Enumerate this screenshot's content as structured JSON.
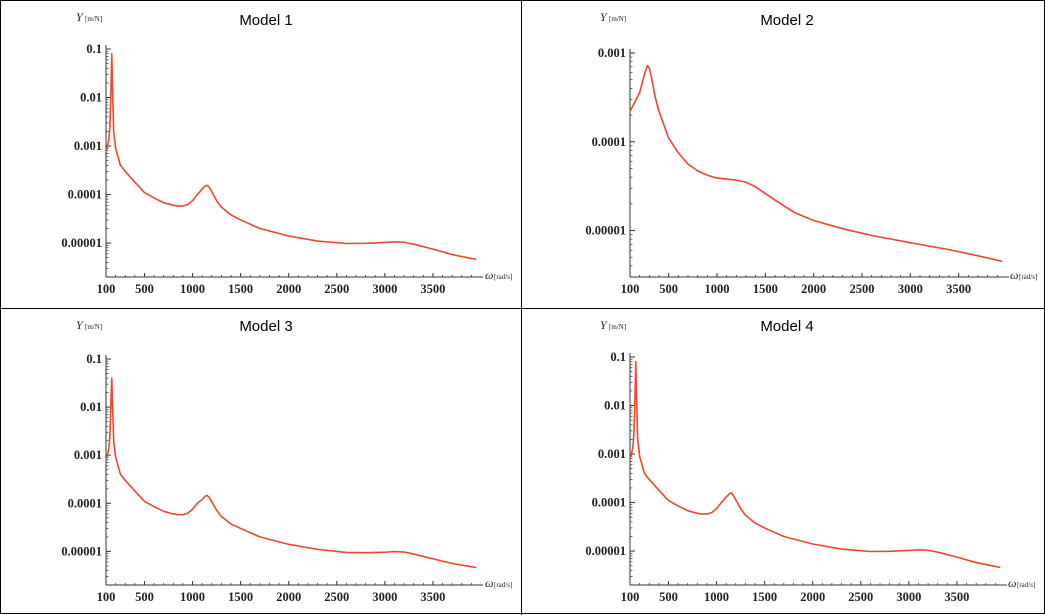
{
  "colors": {
    "curve": "#f0462e",
    "axis": "#333333"
  },
  "chart_data": [
    {
      "type": "line",
      "title": "Model 1",
      "ylabel": "Y",
      "ylabel_unit": "m/N",
      "xlabel": "ω",
      "xlabel_unit": "rad/s",
      "scale_y": "log",
      "xlim": [
        100,
        4000
      ],
      "ylim": [
        2e-06,
        0.1
      ],
      "xticks": [
        "100",
        "500",
        "1000",
        "1500",
        "2000",
        "2500",
        "3000",
        "3500"
      ],
      "yticks": [
        "0.1",
        "0.01",
        "0.001",
        "0.0001",
        "0.00001"
      ],
      "series": [
        {
          "x": [
            100,
            110,
            120,
            130,
            140,
            150,
            160,
            170,
            180,
            200,
            250,
            300,
            400,
            500,
            600,
            700,
            800,
            850,
            900,
            950,
            1000,
            1050,
            1100,
            1130,
            1150,
            1170,
            1200,
            1250,
            1300,
            1400,
            1500,
            1700,
            2000,
            2300,
            2600,
            2800,
            3000,
            3100,
            3200,
            3300,
            3500,
            3700,
            3950
          ],
          "y": [
            0.00085,
            0.0009,
            0.0011,
            0.0014,
            0.0025,
            0.01,
            0.08,
            0.01,
            0.002,
            0.0009,
            0.0004,
            0.0003,
            0.00018,
            0.00011,
            8.5e-05,
            6.8e-05,
            6e-05,
            5.8e-05,
            5.8e-05,
            6.2e-05,
            7.5e-05,
            0.0001,
            0.00013,
            0.00015,
            0.000155,
            0.000145,
            0.000115,
            7.5e-05,
            5.5e-05,
            3.8e-05,
            3e-05,
            2e-05,
            1.4e-05,
            1.1e-05,
            9.8e-06,
            9.9e-06,
            1.03e-05,
            1.06e-05,
            1.04e-05,
            9.5e-06,
            7.5e-06,
            5.8e-06,
            4.6e-06
          ]
        }
      ]
    },
    {
      "type": "line",
      "title": "Model 2",
      "ylabel": "Y",
      "ylabel_unit": "m/N",
      "xlabel": "ω",
      "xlabel_unit": "rad/s",
      "scale_y": "log",
      "xlim": [
        100,
        4000
      ],
      "ylim": [
        3e-06,
        0.001
      ],
      "xticks": [
        "100",
        "500",
        "1000",
        "1500",
        "2000",
        "2500",
        "3000",
        "3500"
      ],
      "yticks": [
        "0.001",
        "0.0001",
        "0.00001"
      ],
      "series": [
        {
          "x": [
            100,
            150,
            200,
            250,
            280,
            300,
            330,
            360,
            400,
            500,
            600,
            700,
            800,
            900,
            1000,
            1100,
            1200,
            1300,
            1400,
            1600,
            1800,
            2000,
            2300,
            2600,
            3000,
            3400,
            3700,
            3950
          ],
          "y": [
            0.00022,
            0.00028,
            0.00036,
            0.00058,
            0.00072,
            0.00068,
            0.00048,
            0.00032,
            0.00022,
            0.00011,
            7.5e-05,
            5.6e-05,
            4.7e-05,
            4.2e-05,
            3.9e-05,
            3.8e-05,
            3.7e-05,
            3.5e-05,
            3.1e-05,
            2.2e-05,
            1.6e-05,
            1.3e-05,
            1.05e-05,
            8.8e-06,
            7.3e-06,
            6.1e-06,
            5.2e-06,
            4.5e-06
          ]
        }
      ]
    },
    {
      "type": "line",
      "title": "Model 3",
      "ylabel": "Y",
      "ylabel_unit": "m/N",
      "xlabel": "ω",
      "xlabel_unit": "rad/s",
      "scale_y": "log",
      "xlim": [
        100,
        4000
      ],
      "ylim": [
        2e-06,
        0.1
      ],
      "xticks": [
        "100",
        "500",
        "1000",
        "1500",
        "2000",
        "2500",
        "3000",
        "3500"
      ],
      "yticks": [
        "0.1",
        "0.01",
        "0.001",
        "0.0001",
        "0.00001"
      ],
      "series": [
        {
          "x": [
            100,
            110,
            120,
            130,
            140,
            150,
            160,
            170,
            180,
            200,
            250,
            300,
            400,
            500,
            600,
            700,
            800,
            850,
            900,
            950,
            1000,
            1050,
            1100,
            1130,
            1150,
            1170,
            1200,
            1250,
            1300,
            1400,
            1500,
            1700,
            2000,
            2300,
            2600,
            2800,
            3000,
            3100,
            3200,
            3300,
            3500,
            3700,
            3950
          ],
          "y": [
            0.00085,
            0.0009,
            0.0011,
            0.0014,
            0.0025,
            0.01,
            0.04,
            0.008,
            0.002,
            0.0009,
            0.0004,
            0.0003,
            0.00018,
            0.00011,
            8.5e-05,
            6.8e-05,
            6e-05,
            5.8e-05,
            5.8e-05,
            6.2e-05,
            7.5e-05,
            0.0001,
            0.00012,
            0.00014,
            0.000145,
            0.000135,
            0.000108,
            7.2e-05,
            5.3e-05,
            3.7e-05,
            3e-05,
            2e-05,
            1.4e-05,
            1.1e-05,
            9.5e-06,
            9.4e-06,
            9.6e-06,
            9.9e-06,
            9.7e-06,
            8.8e-06,
            7e-06,
            5.6e-06,
            4.6e-06
          ]
        }
      ]
    },
    {
      "type": "line",
      "title": "Model 4",
      "ylabel": "Y",
      "ylabel_unit": "m/N",
      "xlabel": "ω",
      "xlabel_unit": "rad/s",
      "scale_y": "log",
      "xlim": [
        100,
        4000
      ],
      "ylim": [
        2e-06,
        0.1
      ],
      "xticks": [
        "100",
        "500",
        "1000",
        "1500",
        "2000",
        "2500",
        "3000",
        "3500"
      ],
      "yticks": [
        "0.1",
        "0.01",
        "0.001",
        "0.0001",
        "0.00001"
      ],
      "series": [
        {
          "x": [
            100,
            110,
            120,
            130,
            140,
            150,
            160,
            170,
            180,
            200,
            250,
            300,
            400,
            500,
            600,
            700,
            800,
            850,
            900,
            950,
            1000,
            1050,
            1100,
            1130,
            1150,
            1170,
            1200,
            1250,
            1300,
            1400,
            1500,
            1700,
            2000,
            2300,
            2600,
            2800,
            3000,
            3100,
            3200,
            3300,
            3500,
            3700,
            3950
          ],
          "y": [
            0.00085,
            0.0009,
            0.0011,
            0.0014,
            0.0025,
            0.01,
            0.08,
            0.01,
            0.002,
            0.0009,
            0.0004,
            0.0003,
            0.00018,
            0.00011,
            8.5e-05,
            6.8e-05,
            6e-05,
            5.8e-05,
            5.8e-05,
            6.2e-05,
            7.5e-05,
            0.0001,
            0.00013,
            0.00015,
            0.00016,
            0.000145,
            0.000115,
            7.5e-05,
            5.5e-05,
            3.8e-05,
            3e-05,
            2e-05,
            1.4e-05,
            1.1e-05,
            9.8e-06,
            9.9e-06,
            1.03e-05,
            1.06e-05,
            1.04e-05,
            9.5e-06,
            7.5e-06,
            5.8e-06,
            4.6e-06
          ]
        }
      ]
    }
  ]
}
